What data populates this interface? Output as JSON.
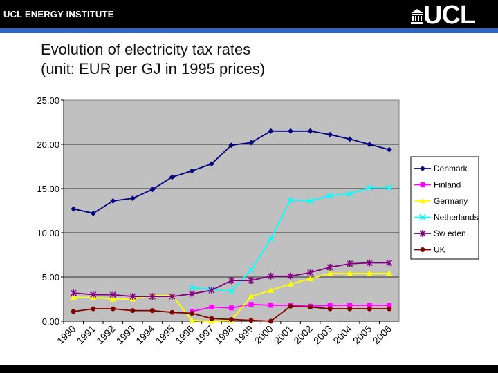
{
  "header": {
    "institute": "UCL ENERGY INSTITUTE",
    "logo_text": "UCL"
  },
  "slide": {
    "title_line1": "Evolution of electricity tax rates",
    "title_line2": "(unit: EUR per GJ in 1995 prices)"
  },
  "colors": {
    "header_bg": "#000000",
    "rule_blue": "#2e64c6",
    "plot_bg": "#c0c0c0"
  },
  "chart_data": {
    "type": "line",
    "title": "",
    "xlabel": "",
    "ylabel": "",
    "ylim": [
      0,
      25
    ],
    "yticks": [
      "0.00",
      "5.00",
      "10.00",
      "15.00",
      "20.00",
      "25.00"
    ],
    "categories": [
      "1990",
      "1991",
      "1992",
      "1993",
      "1994",
      "1995",
      "1996",
      "1997",
      "1998",
      "1999",
      "2000",
      "2001",
      "2002",
      "2003",
      "2004",
      "2005",
      "2006"
    ],
    "legend_position": "right",
    "series": [
      {
        "name": "Denmark",
        "color": "#000080",
        "marker": "diamond",
        "values": [
          12.7,
          12.2,
          13.6,
          13.9,
          14.9,
          16.3,
          17.0,
          17.8,
          19.9,
          20.2,
          21.5,
          21.5,
          21.5,
          21.1,
          20.6,
          20.0,
          19.4
        ]
      },
      {
        "name": "Finland",
        "color": "#ff00ff",
        "marker": "square",
        "values": [
          null,
          null,
          null,
          null,
          null,
          null,
          1.1,
          1.6,
          1.5,
          1.9,
          1.8,
          1.8,
          1.7,
          1.8,
          1.8,
          1.8,
          1.8
        ]
      },
      {
        "name": "Germany",
        "color": "#ffff00",
        "marker": "triangle",
        "values": [
          2.7,
          2.7,
          2.5,
          2.5,
          2.9,
          2.9,
          0.1,
          0.0,
          0.1,
          2.8,
          3.5,
          4.2,
          4.8,
          5.4,
          5.4,
          5.4,
          5.4
        ]
      },
      {
        "name": "Netherlands",
        "color": "#00ffff",
        "marker": "x",
        "values": [
          null,
          null,
          null,
          null,
          null,
          null,
          3.8,
          3.6,
          3.4,
          5.8,
          9.3,
          13.7,
          13.6,
          14.2,
          14.4,
          15.1,
          15.1
        ]
      },
      {
        "name": "Sw eden",
        "color": "#800080",
        "marker": "star",
        "values": [
          3.2,
          3.0,
          3.0,
          2.8,
          2.8,
          2.8,
          3.1,
          3.5,
          4.6,
          4.6,
          5.1,
          5.1,
          5.5,
          6.1,
          6.5,
          6.6,
          6.6
        ]
      },
      {
        "name": "UK",
        "color": "#800000",
        "marker": "circle",
        "values": [
          1.1,
          1.4,
          1.4,
          1.2,
          1.2,
          1.0,
          0.9,
          0.3,
          0.2,
          0.1,
          0.0,
          1.7,
          1.6,
          1.4,
          1.4,
          1.4,
          1.4
        ]
      }
    ]
  }
}
